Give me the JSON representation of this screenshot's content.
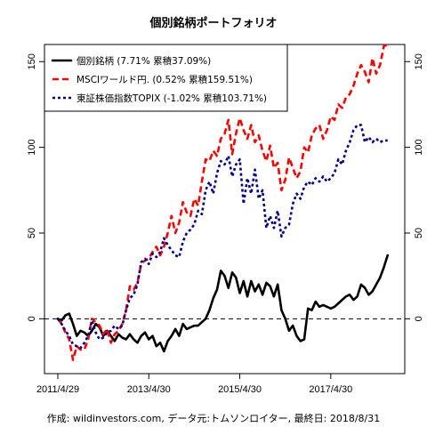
{
  "chart_data": {
    "type": "line",
    "title": "個別銘柄ポートフォリオ",
    "caption": "作成: wildinvestors.com, データ元:トムソンロイター, 最終日: 2018/8/31",
    "x_ticks": [
      {
        "label": "2011/4/29",
        "t": 0
      },
      {
        "label": "2013/4/30",
        "t": 24
      },
      {
        "label": "2015/4/30",
        "t": 48
      },
      {
        "label": "2017/4/30",
        "t": 72
      }
    ],
    "x_range": [
      0,
      88
    ],
    "y_ticks": [
      "0",
      "50",
      "100",
      "150"
    ],
    "ylim": [
      -32,
      160
    ],
    "zero_line": true,
    "legend_position": "top-left",
    "series": [
      {
        "name": "個別銘柄 (7.71% 累積37.09%)",
        "color": "#000000",
        "style": "solid",
        "points": [
          [
            0,
            0
          ],
          [
            1,
            -1
          ],
          [
            2,
            2
          ],
          [
            3,
            3
          ],
          [
            4,
            -3
          ],
          [
            5,
            -10
          ],
          [
            6,
            -7
          ],
          [
            7,
            -8
          ],
          [
            8,
            -10
          ],
          [
            9,
            -7
          ],
          [
            10,
            -3
          ],
          [
            11,
            -5
          ],
          [
            12,
            -10
          ],
          [
            13,
            -7
          ],
          [
            14,
            -10
          ],
          [
            15,
            -13
          ],
          [
            16,
            -9
          ],
          [
            17,
            -11
          ],
          [
            18,
            -12
          ],
          [
            19,
            -9
          ],
          [
            20,
            -12
          ],
          [
            21,
            -14
          ],
          [
            22,
            -10
          ],
          [
            23,
            -8
          ],
          [
            24,
            -12
          ],
          [
            25,
            -10
          ],
          [
            26,
            -16
          ],
          [
            27,
            -14
          ],
          [
            28,
            -19
          ],
          [
            29,
            -13
          ],
          [
            30,
            -10
          ],
          [
            31,
            -6
          ],
          [
            32,
            -10
          ],
          [
            33,
            -3
          ],
          [
            34,
            -6
          ],
          [
            35,
            -5
          ],
          [
            36,
            -4
          ],
          [
            37,
            -4
          ],
          [
            38,
            -2
          ],
          [
            39,
            0
          ],
          [
            40,
            5
          ],
          [
            41,
            12
          ],
          [
            42,
            17
          ],
          [
            43,
            28
          ],
          [
            44,
            25
          ],
          [
            45,
            18
          ],
          [
            46,
            27
          ],
          [
            47,
            24
          ],
          [
            48,
            15
          ],
          [
            49,
            22
          ],
          [
            50,
            13
          ],
          [
            51,
            22
          ],
          [
            52,
            16
          ],
          [
            53,
            20
          ],
          [
            54,
            14
          ],
          [
            55,
            21
          ],
          [
            56,
            19
          ],
          [
            57,
            13
          ],
          [
            58,
            20
          ],
          [
            59,
            5
          ],
          [
            60,
            0
          ],
          [
            61,
            -7
          ],
          [
            62,
            -4
          ],
          [
            63,
            -10
          ],
          [
            64,
            -13
          ],
          [
            65,
            -12
          ],
          [
            66,
            6
          ],
          [
            67,
            5
          ],
          [
            68,
            10
          ],
          [
            69,
            7
          ],
          [
            70,
            8
          ],
          [
            71,
            7
          ],
          [
            72,
            6
          ],
          [
            73,
            7
          ],
          [
            74,
            9
          ],
          [
            75,
            11
          ],
          [
            76,
            13
          ],
          [
            77,
            14
          ],
          [
            78,
            11
          ],
          [
            79,
            13
          ],
          [
            80,
            20
          ],
          [
            81,
            18
          ],
          [
            82,
            14
          ],
          [
            83,
            16
          ],
          [
            84,
            20
          ],
          [
            85,
            24
          ],
          [
            86,
            30
          ],
          [
            87,
            37
          ]
        ]
      },
      {
        "name": "MSCIワールド円. (0.52% 累積159.51%)",
        "color": "#ff0000",
        "style": "dashed",
        "points": [
          [
            0,
            0
          ],
          [
            1,
            -3
          ],
          [
            2,
            -8
          ],
          [
            3,
            -12
          ],
          [
            4,
            -24
          ],
          [
            5,
            -16
          ],
          [
            6,
            -18
          ],
          [
            7,
            -18
          ],
          [
            8,
            -12
          ],
          [
            9,
            0
          ],
          [
            10,
            -2
          ],
          [
            11,
            -4
          ],
          [
            12,
            -9
          ],
          [
            13,
            -6
          ],
          [
            14,
            -14
          ],
          [
            15,
            -9
          ],
          [
            16,
            -7
          ],
          [
            17,
            -3
          ],
          [
            18,
            5
          ],
          [
            19,
            19
          ],
          [
            20,
            17
          ],
          [
            21,
            21
          ],
          [
            22,
            32
          ],
          [
            23,
            34
          ],
          [
            24,
            35
          ],
          [
            25,
            39
          ],
          [
            26,
            42
          ],
          [
            27,
            37
          ],
          [
            28,
            42
          ],
          [
            29,
            50
          ],
          [
            30,
            60
          ],
          [
            31,
            50
          ],
          [
            32,
            56
          ],
          [
            33,
            68
          ],
          [
            34,
            62
          ],
          [
            35,
            60
          ],
          [
            36,
            70
          ],
          [
            37,
            66
          ],
          [
            38,
            80
          ],
          [
            39,
            93
          ],
          [
            40,
            92
          ],
          [
            41,
            98
          ],
          [
            42,
            95
          ],
          [
            43,
            105
          ],
          [
            44,
            108
          ],
          [
            45,
            116
          ],
          [
            46,
            96
          ],
          [
            47,
            108
          ],
          [
            48,
            117
          ],
          [
            49,
            110
          ],
          [
            50,
            105
          ],
          [
            51,
            113
          ],
          [
            52,
            103
          ],
          [
            53,
            107
          ],
          [
            54,
            98
          ],
          [
            55,
            92
          ],
          [
            56,
            101
          ],
          [
            57,
            88
          ],
          [
            58,
            91
          ],
          [
            59,
            75
          ],
          [
            60,
            81
          ],
          [
            61,
            94
          ],
          [
            62,
            88
          ],
          [
            63,
            82
          ],
          [
            64,
            86
          ],
          [
            65,
            100
          ],
          [
            66,
            97
          ],
          [
            67,
            107
          ],
          [
            68,
            111
          ],
          [
            69,
            113
          ],
          [
            70,
            105
          ],
          [
            71,
            110
          ],
          [
            72,
            118
          ],
          [
            73,
            116
          ],
          [
            74,
            125
          ],
          [
            75,
            123
          ],
          [
            76,
            129
          ],
          [
            77,
            131
          ],
          [
            78,
            136
          ],
          [
            79,
            143
          ],
          [
            80,
            148
          ],
          [
            81,
            144
          ],
          [
            82,
            138
          ],
          [
            83,
            152
          ],
          [
            84,
            143
          ],
          [
            85,
            148
          ],
          [
            86,
            159
          ],
          [
            87,
            160
          ]
        ]
      },
      {
        "name": "東証株価指数TOPIX (-1.02% 累積103.71%)",
        "color": "#00008b",
        "style": "dotted",
        "points": [
          [
            0,
            0
          ],
          [
            1,
            -3
          ],
          [
            2,
            -7
          ],
          [
            3,
            -10
          ],
          [
            4,
            -15
          ],
          [
            5,
            -16
          ],
          [
            6,
            -17
          ],
          [
            7,
            -14
          ],
          [
            8,
            -10
          ],
          [
            9,
            -1
          ],
          [
            10,
            -8
          ],
          [
            11,
            -12
          ],
          [
            12,
            -11
          ],
          [
            13,
            -8
          ],
          [
            14,
            -7
          ],
          [
            15,
            -4
          ],
          [
            16,
            -6
          ],
          [
            17,
            -4
          ],
          [
            18,
            5
          ],
          [
            19,
            12
          ],
          [
            20,
            14
          ],
          [
            21,
            20
          ],
          [
            22,
            33
          ],
          [
            23,
            35
          ],
          [
            24,
            32
          ],
          [
            25,
            38
          ],
          [
            26,
            36
          ],
          [
            27,
            39
          ],
          [
            28,
            47
          ],
          [
            29,
            43
          ],
          [
            30,
            40
          ],
          [
            31,
            37
          ],
          [
            32,
            36
          ],
          [
            33,
            45
          ],
          [
            34,
            50
          ],
          [
            35,
            52
          ],
          [
            36,
            55
          ],
          [
            37,
            63
          ],
          [
            38,
            61
          ],
          [
            39,
            75
          ],
          [
            40,
            80
          ],
          [
            41,
            73
          ],
          [
            42,
            85
          ],
          [
            43,
            92
          ],
          [
            44,
            90
          ],
          [
            45,
            95
          ],
          [
            46,
            83
          ],
          [
            47,
            90
          ],
          [
            48,
            93
          ],
          [
            49,
            67
          ],
          [
            50,
            82
          ],
          [
            51,
            73
          ],
          [
            52,
            87
          ],
          [
            53,
            70
          ],
          [
            54,
            75
          ],
          [
            55,
            53
          ],
          [
            56,
            60
          ],
          [
            57,
            53
          ],
          [
            58,
            63
          ],
          [
            59,
            48
          ],
          [
            60,
            53
          ],
          [
            61,
            55
          ],
          [
            62,
            67
          ],
          [
            63,
            73
          ],
          [
            64,
            70
          ],
          [
            65,
            77
          ],
          [
            66,
            80
          ],
          [
            67,
            78
          ],
          [
            68,
            82
          ],
          [
            69,
            80
          ],
          [
            70,
            83
          ],
          [
            71,
            80
          ],
          [
            72,
            82
          ],
          [
            73,
            85
          ],
          [
            74,
            93
          ],
          [
            75,
            90
          ],
          [
            76,
            98
          ],
          [
            77,
            103
          ],
          [
            78,
            110
          ],
          [
            79,
            113
          ],
          [
            80,
            113
          ],
          [
            81,
            103
          ],
          [
            82,
            106
          ],
          [
            83,
            103
          ],
          [
            84,
            105
          ],
          [
            85,
            103
          ],
          [
            86,
            104
          ],
          [
            87,
            104
          ]
        ]
      }
    ]
  }
}
